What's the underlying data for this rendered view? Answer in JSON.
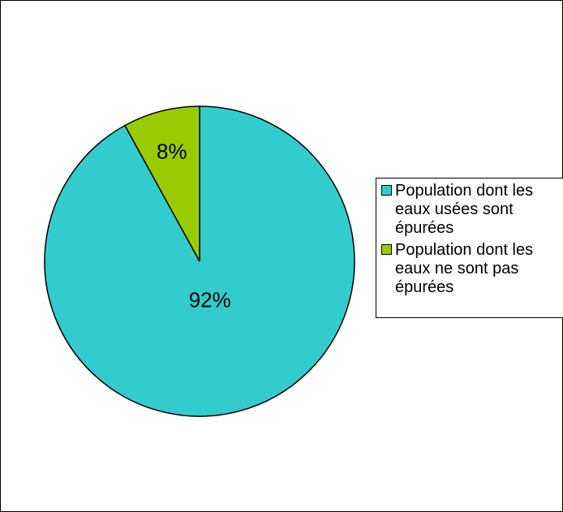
{
  "chart_data": {
    "type": "pie",
    "title": "",
    "slices": [
      {
        "label": "Population dont les eaux usées sont épurées",
        "legend_text": "Population dont les\neaux usées sont\népurées",
        "value": 92,
        "value_label": "92%",
        "color": "#33CCCC"
      },
      {
        "label": "Population dont les eaux ne sont pas épurées",
        "legend_text": "Population dont les\neaux ne sont pas\népurées",
        "value": 8,
        "value_label": "8%",
        "color": "#99CC00"
      }
    ],
    "legend_placement": "right"
  }
}
